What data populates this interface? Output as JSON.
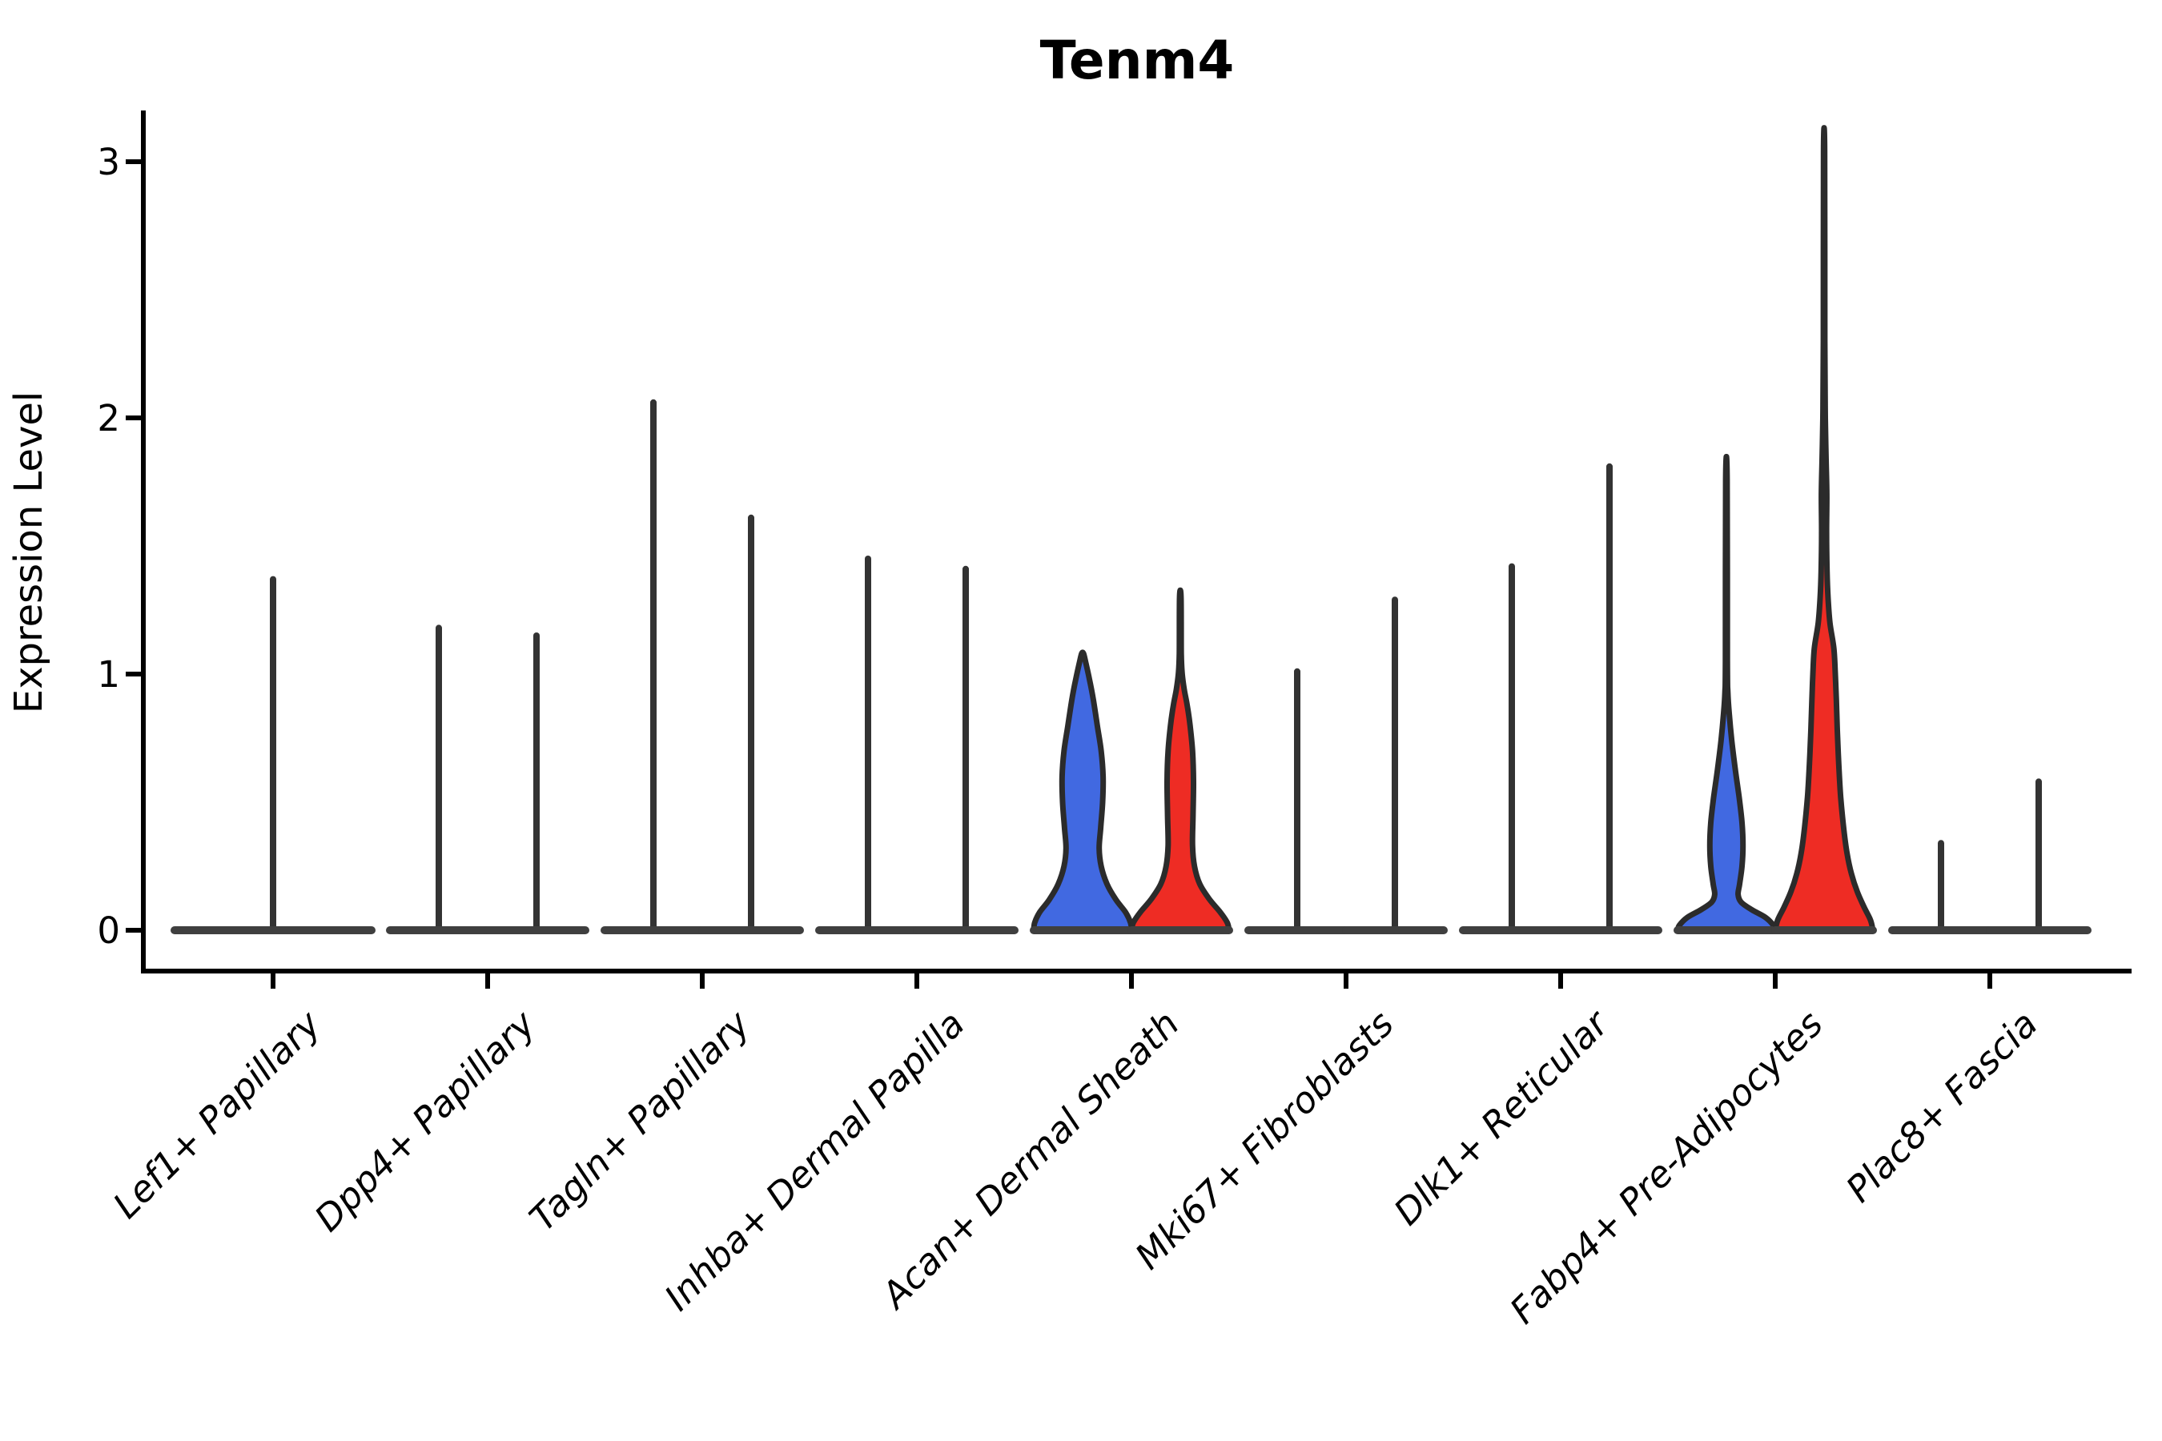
{
  "title": "Tenm4",
  "y_axis": {
    "label": "Expression Level"
  },
  "colors": {
    "split_blue": "#4169E1",
    "split_red": "#EE2C24",
    "violin_outline": "#2B2B2B",
    "spike": "#333333",
    "baseline": "#3F3F3F",
    "axis": "#000000"
  },
  "chart_data": {
    "type": "violin",
    "title": "Tenm4",
    "xlabel": "",
    "ylabel": "Expression Level",
    "ylim": [
      0,
      3.1
    ],
    "yticks": [
      0,
      1,
      2,
      3
    ],
    "grid": false,
    "legend": "none",
    "x_label_rotation_deg": 45,
    "categories": [
      "Lef1+ Papillary",
      "Dpp4+ Papillary",
      "Tagln+ Papillary",
      "Inhba+ Dermal Papilla",
      "Acan+ Dermal Sheath",
      "Mki67+ Fibroblasts",
      "Dlk1+ Reticular",
      "Fabp4+ Pre-Adipocytes",
      "Plac8+ Fascia"
    ],
    "groups": [
      {
        "label": "Lef1+ Papillary",
        "violins": [
          {
            "position": "center",
            "style": "spike",
            "max": 1.37
          }
        ]
      },
      {
        "label": "Dpp4+ Papillary",
        "violins": [
          {
            "position": "left",
            "style": "spike",
            "max": 1.18
          },
          {
            "position": "right",
            "style": "spike",
            "max": 1.15
          }
        ]
      },
      {
        "label": "Tagln+ Papillary",
        "violins": [
          {
            "position": "left",
            "style": "spike",
            "max": 2.06
          },
          {
            "position": "right",
            "style": "spike",
            "max": 1.61
          }
        ]
      },
      {
        "label": "Inhba+ Dermal Papilla",
        "violins": [
          {
            "position": "left",
            "style": "spike",
            "max": 1.45
          },
          {
            "position": "right",
            "style": "spike",
            "max": 1.41
          }
        ]
      },
      {
        "label": "Acan+ Dermal Sheath",
        "violins": [
          {
            "position": "left",
            "style": "density",
            "fill": "#4169E1",
            "max": 1.08,
            "profile": [
              [
                0,
                1.0
              ],
              [
                0.03,
                0.98
              ],
              [
                0.07,
                0.88
              ],
              [
                0.12,
                0.68
              ],
              [
                0.18,
                0.5
              ],
              [
                0.25,
                0.38
              ],
              [
                0.32,
                0.34
              ],
              [
                0.4,
                0.37
              ],
              [
                0.5,
                0.41
              ],
              [
                0.6,
                0.42
              ],
              [
                0.7,
                0.38
              ],
              [
                0.8,
                0.3
              ],
              [
                0.9,
                0.22
              ],
              [
                0.98,
                0.14
              ],
              [
                1.04,
                0.07
              ],
              [
                1.08,
                0.02
              ]
            ]
          },
          {
            "position": "right",
            "style": "density",
            "fill": "#EE2C24",
            "max": 1.3,
            "profile": [
              [
                0,
                1.0
              ],
              [
                0.03,
                0.96
              ],
              [
                0.07,
                0.82
              ],
              [
                0.12,
                0.6
              ],
              [
                0.18,
                0.4
              ],
              [
                0.25,
                0.29
              ],
              [
                0.33,
                0.25
              ],
              [
                0.45,
                0.26
              ],
              [
                0.58,
                0.27
              ],
              [
                0.7,
                0.25
              ],
              [
                0.8,
                0.2
              ],
              [
                0.88,
                0.14
              ],
              [
                0.94,
                0.08
              ],
              [
                1.0,
                0.04
              ],
              [
                1.08,
                0.02
              ],
              [
                1.3,
                0.015
              ]
            ]
          }
        ]
      },
      {
        "label": "Mki67+ Fibroblasts",
        "violins": [
          {
            "position": "left",
            "style": "spike",
            "max": 1.01
          },
          {
            "position": "right",
            "style": "spike",
            "max": 1.29
          }
        ]
      },
      {
        "label": "Dlk1+ Reticular",
        "violins": [
          {
            "position": "left",
            "style": "spike",
            "max": 1.42
          },
          {
            "position": "right",
            "style": "spike",
            "max": 1.81
          }
        ]
      },
      {
        "label": "Fabp4+ Pre-Adipocytes",
        "violins": [
          {
            "position": "left",
            "style": "density",
            "fill": "#4169E1",
            "max": 1.76,
            "profile": [
              [
                0,
                1.0
              ],
              [
                0.02,
                0.96
              ],
              [
                0.05,
                0.8
              ],
              [
                0.08,
                0.52
              ],
              [
                0.11,
                0.3
              ],
              [
                0.14,
                0.24
              ],
              [
                0.18,
                0.27
              ],
              [
                0.25,
                0.32
              ],
              [
                0.33,
                0.34
              ],
              [
                0.42,
                0.32
              ],
              [
                0.52,
                0.26
              ],
              [
                0.63,
                0.18
              ],
              [
                0.74,
                0.11
              ],
              [
                0.84,
                0.06
              ],
              [
                0.93,
                0.03
              ],
              [
                1.05,
                0.02
              ],
              [
                1.76,
                0.015
              ]
            ]
          },
          {
            "position": "right",
            "style": "density",
            "fill": "#EE2C24",
            "max": 3.04,
            "profile": [
              [
                0,
                1.0
              ],
              [
                0.04,
                0.95
              ],
              [
                0.09,
                0.82
              ],
              [
                0.15,
                0.68
              ],
              [
                0.22,
                0.56
              ],
              [
                0.3,
                0.47
              ],
              [
                0.4,
                0.4
              ],
              [
                0.52,
                0.34
              ],
              [
                0.65,
                0.3
              ],
              [
                0.78,
                0.27
              ],
              [
                0.9,
                0.25
              ],
              [
                1.0,
                0.23
              ],
              [
                1.1,
                0.2
              ],
              [
                1.2,
                0.12
              ],
              [
                1.3,
                0.08
              ],
              [
                1.4,
                0.06
              ],
              [
                1.55,
                0.05
              ],
              [
                1.7,
                0.055
              ],
              [
                1.85,
                0.04
              ],
              [
                2.0,
                0.025
              ],
              [
                2.3,
                0.015
              ],
              [
                3.04,
                0.012
              ]
            ]
          }
        ]
      },
      {
        "label": "Plac8+ Fascia",
        "violins": [
          {
            "position": "left",
            "style": "spike",
            "max": 0.34
          },
          {
            "position": "right",
            "style": "spike",
            "max": 0.58
          }
        ]
      }
    ]
  }
}
